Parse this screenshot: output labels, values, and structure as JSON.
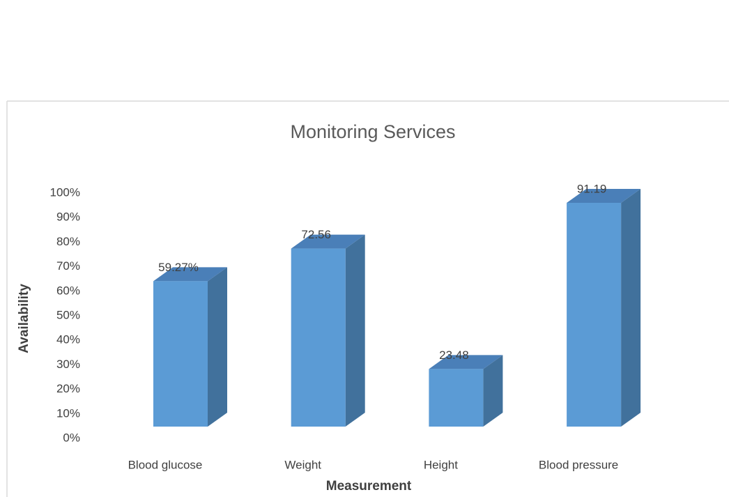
{
  "chart_data": {
    "type": "bar3d",
    "title": "Monitoring Services",
    "x_label": "Measurement",
    "y_label": "Availability",
    "categories": [
      "Blood glucose",
      "Weight",
      "Height",
      "Blood pressure"
    ],
    "values": [
      59.27,
      72.56,
      23.48,
      91.19
    ],
    "value_labels": [
      "59.27%",
      "72.56",
      "23.48",
      "91.19"
    ],
    "color": "#5b9bd5",
    "ylim": [
      0,
      100
    ],
    "yticks": [
      {
        "value": 0,
        "label": "0%"
      },
      {
        "value": 10,
        "label": "10%"
      },
      {
        "value": 20,
        "label": "20%"
      },
      {
        "value": 30,
        "label": "30%"
      },
      {
        "value": 40,
        "label": "40%"
      },
      {
        "value": 50,
        "label": "50%"
      },
      {
        "value": 60,
        "label": "60%"
      },
      {
        "value": 70,
        "label": "70%"
      },
      {
        "value": 80,
        "label": "80%"
      },
      {
        "value": 90,
        "label": "90%"
      },
      {
        "value": 100,
        "label": "100%"
      }
    ],
    "grid": false
  }
}
